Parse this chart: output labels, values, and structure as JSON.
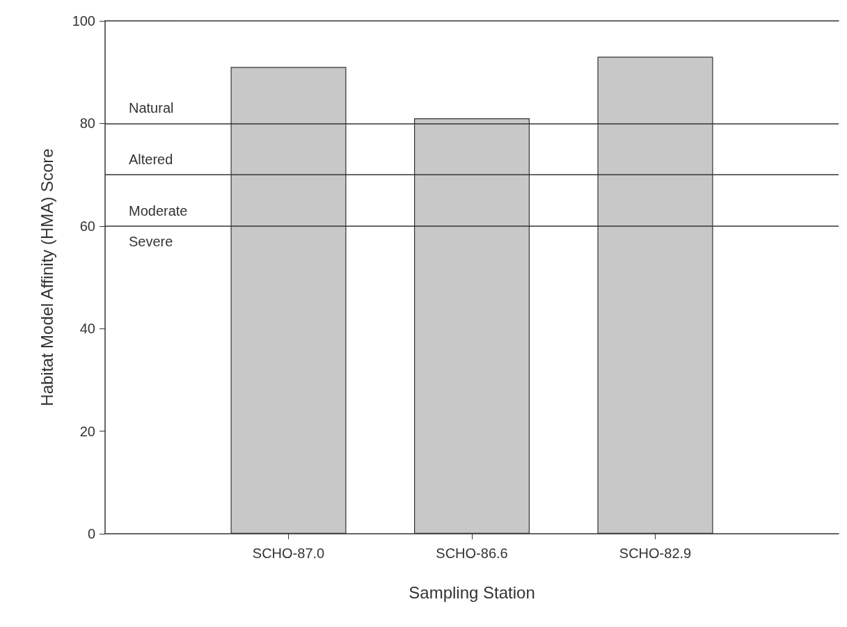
{
  "chart_data": {
    "type": "bar",
    "xlabel": "Sampling Station",
    "ylabel": "Habitat Model Affinity (HMA) Score",
    "categories": [
      "SCHO-87.0",
      "SCHO-86.6",
      "SCHO-82.9"
    ],
    "values": [
      91,
      81,
      93
    ],
    "color": "#c8c8c8",
    "ylim": [
      0,
      100
    ],
    "yticks": [
      0,
      20,
      40,
      60,
      80,
      100
    ],
    "grid": false,
    "ref_lines": [
      {
        "axis": "y",
        "value": 80,
        "color": "#333333"
      },
      {
        "axis": "y",
        "value": 70,
        "color": "#333333"
      },
      {
        "axis": "y",
        "value": 60,
        "color": "#333333"
      }
    ],
    "annotations": [
      "Natural",
      "Altered",
      "Moderate",
      "Severe"
    ]
  }
}
